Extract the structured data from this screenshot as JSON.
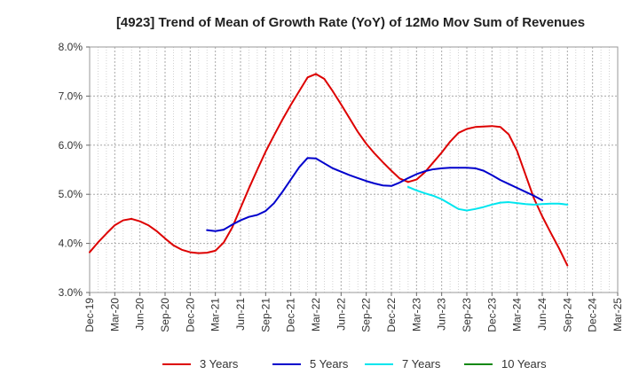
{
  "chart_data": {
    "type": "line",
    "title": "[4923]  Trend of Mean of Growth Rate (YoY) of 12Mo Mov Sum of Revenues",
    "xlabel": "",
    "ylabel": "",
    "ylim": [
      3.0,
      8.0
    ],
    "y_ticks": [
      {
        "value": 3.0,
        "label": "3.0%"
      },
      {
        "value": 4.0,
        "label": "4.0%"
      },
      {
        "value": 5.0,
        "label": "5.0%"
      },
      {
        "value": 6.0,
        "label": "6.0%"
      },
      {
        "value": 7.0,
        "label": "7.0%"
      },
      {
        "value": 8.0,
        "label": "8.0%"
      }
    ],
    "x_ticks": [
      {
        "index": 0,
        "label": "Dec-19"
      },
      {
        "index": 3,
        "label": "Mar-20"
      },
      {
        "index": 6,
        "label": "Jun-20"
      },
      {
        "index": 9,
        "label": "Sep-20"
      },
      {
        "index": 12,
        "label": "Dec-20"
      },
      {
        "index": 15,
        "label": "Mar-21"
      },
      {
        "index": 18,
        "label": "Jun-21"
      },
      {
        "index": 21,
        "label": "Sep-21"
      },
      {
        "index": 24,
        "label": "Dec-21"
      },
      {
        "index": 27,
        "label": "Mar-22"
      },
      {
        "index": 30,
        "label": "Jun-22"
      },
      {
        "index": 33,
        "label": "Sep-22"
      },
      {
        "index": 36,
        "label": "Dec-22"
      },
      {
        "index": 39,
        "label": "Mar-23"
      },
      {
        "index": 42,
        "label": "Jun-23"
      },
      {
        "index": 45,
        "label": "Sep-23"
      },
      {
        "index": 48,
        "label": "Dec-23"
      },
      {
        "index": 51,
        "label": "Mar-24"
      },
      {
        "index": 54,
        "label": "Jun-24"
      },
      {
        "index": 57,
        "label": "Sep-24"
      },
      {
        "index": 60,
        "label": "Dec-24"
      },
      {
        "index": 63,
        "label": "Mar-25"
      }
    ],
    "x_range": [
      0,
      63
    ],
    "grid": true,
    "legend_position": "bottom",
    "series": [
      {
        "name": "3 Years",
        "color": "#dd0000",
        "start_index": 0,
        "values": [
          3.82,
          4.02,
          4.2,
          4.37,
          4.47,
          4.5,
          4.45,
          4.37,
          4.25,
          4.1,
          3.96,
          3.87,
          3.82,
          3.8,
          3.81,
          3.85,
          4.02,
          4.32,
          4.72,
          5.12,
          5.5,
          5.87,
          6.2,
          6.52,
          6.82,
          7.1,
          7.38,
          7.45,
          7.35,
          7.1,
          6.83,
          6.55,
          6.27,
          6.03,
          5.83,
          5.65,
          5.48,
          5.32,
          5.25,
          5.3,
          5.45,
          5.65,
          5.85,
          6.07,
          6.25,
          6.33,
          6.37,
          6.38,
          6.39,
          6.37,
          6.22,
          5.88,
          5.4,
          4.92,
          4.55,
          4.22,
          3.9,
          3.55
        ]
      },
      {
        "name": "5 Years",
        "color": "#0000cc",
        "start_index": 14,
        "values": [
          4.27,
          4.25,
          4.28,
          4.38,
          4.47,
          4.54,
          4.58,
          4.66,
          4.82,
          5.05,
          5.3,
          5.55,
          5.74,
          5.73,
          5.63,
          5.53,
          5.46,
          5.39,
          5.33,
          5.27,
          5.22,
          5.18,
          5.17,
          5.24,
          5.33,
          5.41,
          5.47,
          5.51,
          5.53,
          5.54,
          5.54,
          5.54,
          5.53,
          5.48,
          5.39,
          5.29,
          5.21,
          5.13,
          5.05,
          4.97,
          4.88
        ]
      },
      {
        "name": "7 Years",
        "color": "#00e5ee",
        "start_index": 38,
        "values": [
          5.15,
          5.08,
          5.02,
          4.97,
          4.9,
          4.8,
          4.7,
          4.67,
          4.7,
          4.74,
          4.79,
          4.83,
          4.84,
          4.82,
          4.8,
          4.79,
          4.8,
          4.81,
          4.81,
          4.79
        ]
      },
      {
        "name": "10 Years",
        "color": "#118811",
        "start_index": 0,
        "values": []
      }
    ]
  }
}
